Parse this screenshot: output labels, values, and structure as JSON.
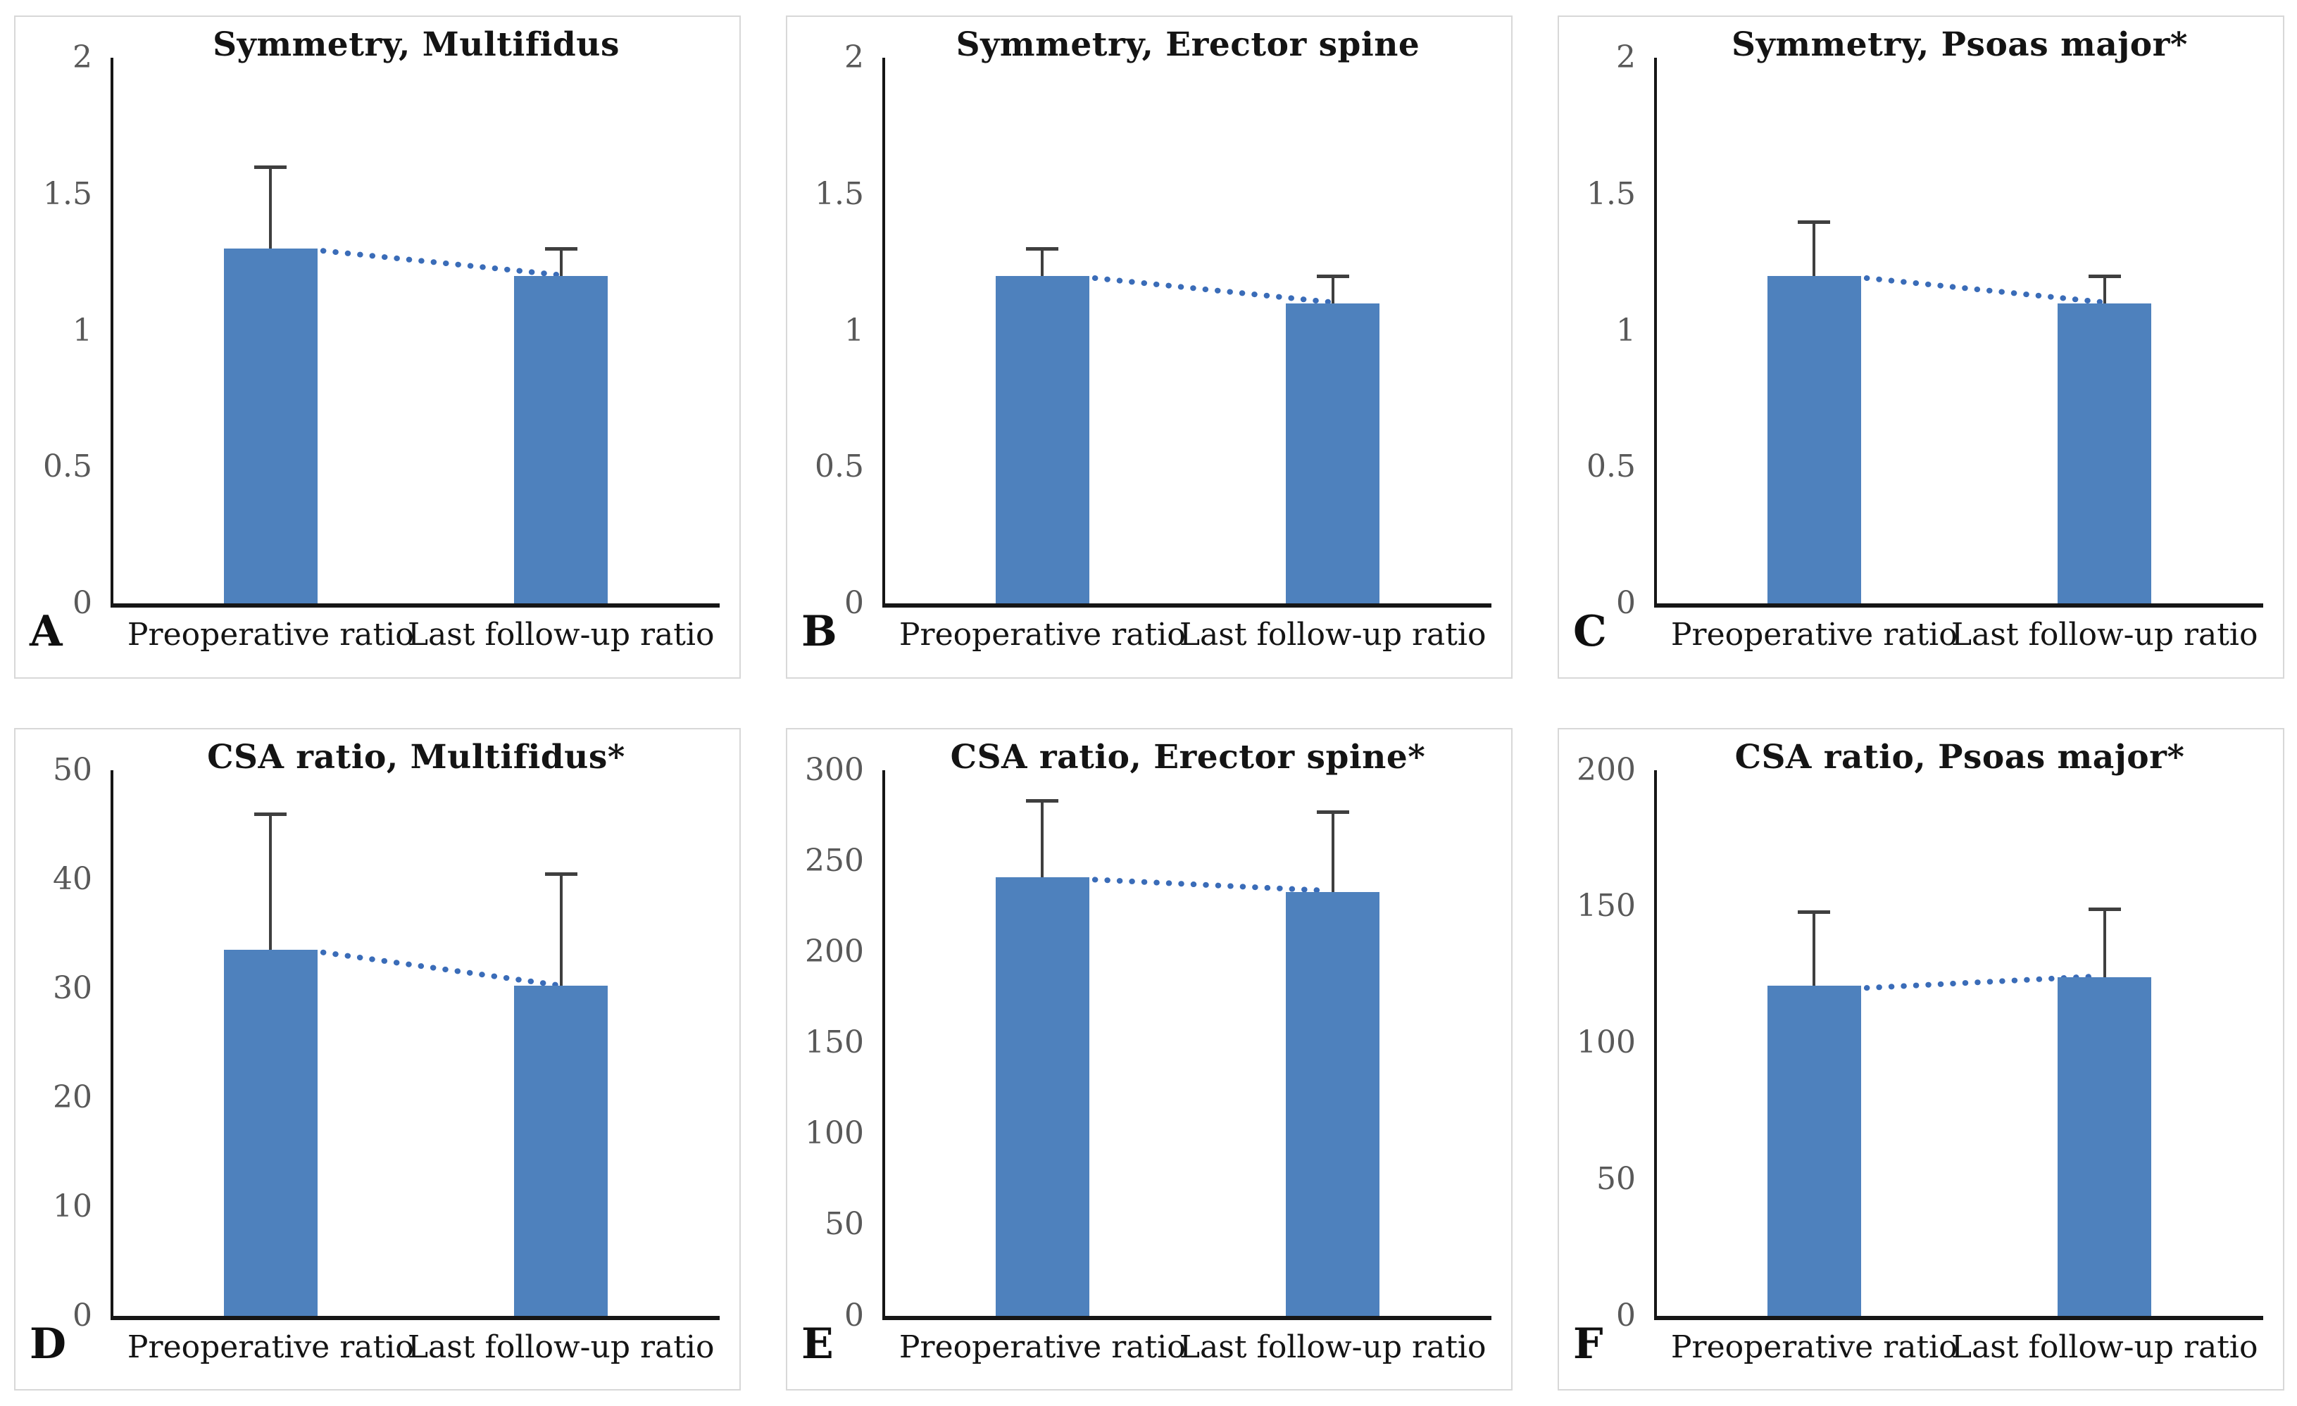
{
  "figure": {
    "background": "#ffffff",
    "panel_border_color": "#d8d8d8",
    "layout": "2 rows x 3 columns of bar chart panels"
  },
  "colors": {
    "bar": "#4E81BD",
    "trend_dots": "#3A6CB8",
    "error_bar": "#3F3F3F",
    "axis": "#161616",
    "tick_label": "#595959",
    "text": "#141414"
  },
  "chart_data": [
    {
      "type": "bar",
      "panel_label": "A",
      "title": "Symmetry, Multifidus",
      "categories": [
        "Preoperative ratio",
        "Last follow-up ratio"
      ],
      "values": [
        1.3,
        1.2
      ],
      "error_top": [
        1.6,
        1.3
      ],
      "ylim": [
        0,
        2
      ],
      "yticks": [
        0,
        0.5,
        1,
        1.5,
        2
      ],
      "ytick_labels": [
        "0",
        "0.5",
        "1",
        "1.5",
        "2"
      ],
      "trend_line": "dotted line connecting bar tops",
      "grid": false,
      "legend": false
    },
    {
      "type": "bar",
      "panel_label": "B",
      "title": "Symmetry, Erector spine",
      "categories": [
        "Preoperative ratio",
        "Last follow-up ratio"
      ],
      "values": [
        1.2,
        1.1
      ],
      "error_top": [
        1.3,
        1.2
      ],
      "ylim": [
        0,
        2
      ],
      "yticks": [
        0,
        0.5,
        1,
        1.5,
        2
      ],
      "ytick_labels": [
        "0",
        "0.5",
        "1",
        "1.5",
        "2"
      ],
      "trend_line": "dotted line connecting bar tops",
      "grid": false,
      "legend": false
    },
    {
      "type": "bar",
      "panel_label": "C",
      "title": "Symmetry, Psoas major*",
      "categories": [
        "Preoperative ratio",
        "Last follow-up ratio"
      ],
      "values": [
        1.2,
        1.1
      ],
      "error_top": [
        1.4,
        1.2
      ],
      "ylim": [
        0,
        2
      ],
      "yticks": [
        0,
        0.5,
        1,
        1.5,
        2
      ],
      "ytick_labels": [
        "0",
        "0.5",
        "1",
        "1.5",
        "2"
      ],
      "trend_line": "dotted line connecting bar tops",
      "grid": false,
      "legend": false
    },
    {
      "type": "bar",
      "panel_label": "D",
      "title": "CSA ratio, Multifidus*",
      "categories": [
        "Preoperative ratio",
        "Last follow-up ratio"
      ],
      "values": [
        33.5,
        30.2
      ],
      "error_top": [
        46,
        40.5
      ],
      "ylim": [
        0,
        50
      ],
      "yticks": [
        0,
        10,
        20,
        30,
        40,
        50
      ],
      "ytick_labels": [
        "0",
        "10",
        "20",
        "30",
        "40",
        "50"
      ],
      "trend_line": "dotted line connecting bar tops",
      "grid": false,
      "legend": false
    },
    {
      "type": "bar",
      "panel_label": "E",
      "title": "CSA ratio, Erector spine*",
      "categories": [
        "Preoperative ratio",
        "Last follow-up ratio"
      ],
      "values": [
        241,
        233
      ],
      "error_top": [
        283,
        277
      ],
      "ylim": [
        0,
        300
      ],
      "yticks": [
        0,
        50,
        100,
        150,
        200,
        250,
        300
      ],
      "ytick_labels": [
        "0",
        "50",
        "100",
        "150",
        "200",
        "250",
        "300"
      ],
      "trend_line": "dotted line connecting bar tops",
      "grid": false,
      "legend": false
    },
    {
      "type": "bar",
      "panel_label": "F",
      "title": "CSA ratio, Psoas major*",
      "categories": [
        "Preoperative ratio",
        "Last follow-up ratio"
      ],
      "values": [
        121,
        124
      ],
      "error_top": [
        148,
        149
      ],
      "ylim": [
        0,
        200
      ],
      "yticks": [
        0,
        50,
        100,
        150,
        200
      ],
      "ytick_labels": [
        "0",
        "50",
        "100",
        "150",
        "200"
      ],
      "trend_line": "dotted line connecting bar tops",
      "grid": false,
      "legend": false
    }
  ]
}
